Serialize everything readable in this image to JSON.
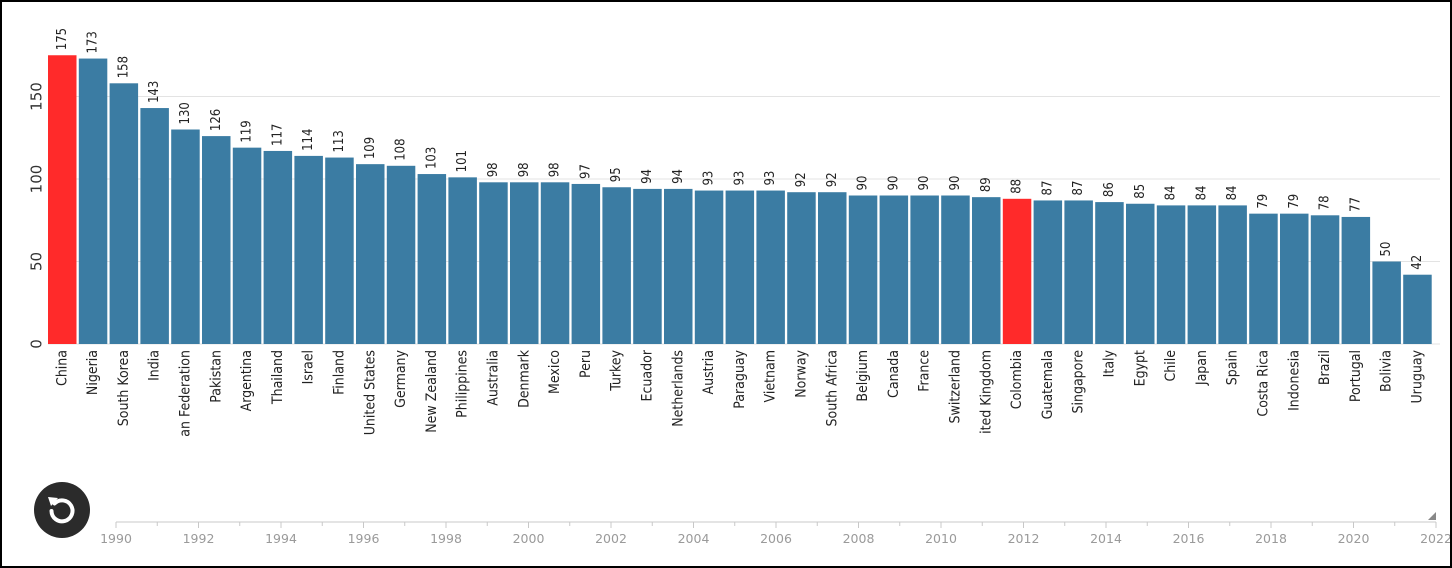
{
  "chart_data": {
    "type": "bar",
    "categories": [
      "China",
      "Nigeria",
      "South Korea",
      "India",
      "an Federation",
      "Pakistan",
      "Argentina",
      "Thailand",
      "Israel",
      "Finland",
      "United States",
      "Germany",
      "New Zealand",
      "Philippines",
      "Australia",
      "Denmark",
      "Mexico",
      "Peru",
      "Turkey",
      "Ecuador",
      "Netherlands",
      "Austria",
      "Paraguay",
      "Vietnam",
      "Norway",
      "South Africa",
      "Belgium",
      "Canada",
      "France",
      "Switzerland",
      "ited Kingdom",
      "Colombia",
      "Guatemala",
      "Singapore",
      "Italy",
      "Egypt",
      "Chile",
      "Japan",
      "Spain",
      "Costa Rica",
      "Indonesia",
      "Brazil",
      "Portugal",
      "Bolivia",
      "Uruguay"
    ],
    "values": [
      175,
      173,
      158,
      143,
      130,
      126,
      119,
      117,
      114,
      113,
      109,
      108,
      103,
      101,
      98,
      98,
      98,
      97,
      95,
      94,
      94,
      93,
      93,
      93,
      92,
      92,
      90,
      90,
      90,
      90,
      89,
      88,
      87,
      87,
      86,
      85,
      84,
      84,
      84,
      79,
      79,
      78,
      77,
      50,
      42
    ],
    "value_labels": [
      "175",
      "173",
      "158",
      "143",
      "130",
      "126",
      "119",
      "117",
      "114",
      "113",
      "109",
      "108",
      "103",
      "101",
      "98",
      "98",
      "98",
      "97",
      "95",
      "94",
      "94",
      "93",
      "93",
      "93",
      "92",
      "92",
      "90",
      "90",
      "90",
      "90",
      "89",
      "88",
      "87",
      "87",
      "86",
      "85",
      "84",
      "84",
      "84",
      "79",
      "79",
      "78",
      "77",
      "50",
      "42"
    ],
    "highlighted": [
      "China",
      "Colombia"
    ],
    "ylim": [
      0,
      180
    ],
    "y_ticks": [
      0,
      50,
      100,
      150
    ],
    "y_tick_labels": [
      "0",
      "50",
      "100",
      "150"
    ],
    "grid": true,
    "title": "",
    "xlabel": "",
    "ylabel": ""
  },
  "timeline": {
    "start_year": 1990,
    "end_year": 2022,
    "current_year": 2022,
    "labels": [
      "1990",
      "1992",
      "1994",
      "1996",
      "1998",
      "2000",
      "2002",
      "2004",
      "2006",
      "2008",
      "2010",
      "2012",
      "2014",
      "2016",
      "2018",
      "2020",
      "2022"
    ]
  },
  "colors": {
    "bar": "#3b7ca3",
    "highlight": "#ff2a2a",
    "grid": "#e3e3e3",
    "replay_bg": "#2b2b2b",
    "timeline": "#c8c8c8"
  },
  "controls": {
    "replay_icon": "replay-icon"
  }
}
